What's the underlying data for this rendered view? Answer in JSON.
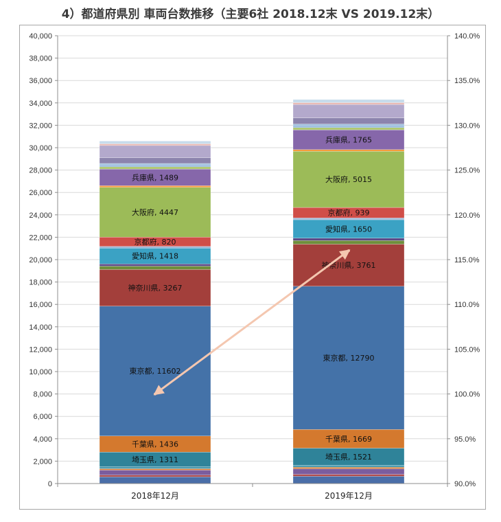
{
  "header": {
    "title": "4）都道府県別 車両台数推移（主要6社 2018.12末 VS 2019.12末）"
  },
  "chart_data": {
    "type": "bar",
    "stacked": true,
    "title": "4）都道府県別 車両台数推移（主要6社 2018.12末 VS 2019.12末）",
    "categories": [
      "2018年12月",
      "2019年12月"
    ],
    "y_left": {
      "min": 0,
      "max": 40000,
      "step": 2000
    },
    "y_right": {
      "min": 90,
      "max": 140,
      "step": 5,
      "suffix": "%"
    },
    "y_left_ticks": [
      "0",
      "2,000",
      "4,000",
      "6,000",
      "8,000",
      "10,000",
      "12,000",
      "14,000",
      "16,000",
      "18,000",
      "20,000",
      "22,000",
      "24,000",
      "26,000",
      "28,000",
      "30,000",
      "32,000",
      "34,000",
      "36,000",
      "38,000",
      "40,000"
    ],
    "y_right_ticks": [
      "90.0%",
      "95.0%",
      "100.0%",
      "105.0%",
      "110.0%",
      "115.0%",
      "120.0%",
      "125.0%",
      "130.0%",
      "135.0%",
      "140.0%"
    ],
    "series": [
      {
        "label": "",
        "values": [
          600,
          650
        ],
        "color": "#4a6ea8"
      },
      {
        "label": "",
        "values": [
          150,
          170
        ],
        "color": "#b04a48"
      },
      {
        "label": "",
        "values": [
          450,
          500
        ],
        "color": "#7b5d9e"
      },
      {
        "label": "",
        "values": [
          120,
          130
        ],
        "color": "#e07d2c"
      },
      {
        "label": "",
        "values": [
          180,
          190
        ],
        "color": "#4a9bb0"
      },
      {
        "label": "埼玉県",
        "values": [
          1311,
          1521
        ],
        "color": "#2f8399"
      },
      {
        "label": "千葉県",
        "values": [
          1436,
          1669
        ],
        "color": "#d4792e"
      },
      {
        "label": "東京都",
        "values": [
          11602,
          12790
        ],
        "color": "#4472a8"
      },
      {
        "label": "神奈川県",
        "values": [
          3267,
          3761
        ],
        "color": "#a33f3b"
      },
      {
        "label": "",
        "values": [
          300,
          320
        ],
        "color": "#6f8f3c"
      },
      {
        "label": "",
        "values": [
          200,
          210
        ],
        "color": "#5e4a86"
      },
      {
        "label": "愛知県",
        "values": [
          1418,
          1650
        ],
        "color": "#3ba2c4"
      },
      {
        "label": "",
        "values": [
          150,
          160
        ],
        "color": "#9fb8d8"
      },
      {
        "label": "京都府",
        "values": [
          820,
          939
        ],
        "color": "#d04e48"
      },
      {
        "label": "大阪府",
        "values": [
          4447,
          5015
        ],
        "color": "#9cbb58"
      },
      {
        "label": "",
        "values": [
          150,
          150
        ],
        "color": "#f59b3c"
      },
      {
        "label": "兵庫県",
        "values": [
          1489,
          1765
        ],
        "color": "#8667aa"
      },
      {
        "label": "",
        "values": [
          200,
          200
        ],
        "color": "#b0c870"
      },
      {
        "label": "",
        "values": [
          150,
          160
        ],
        "color": "#8db3da"
      },
      {
        "label": "",
        "values": [
          150,
          160
        ],
        "color": "#9fc0de"
      },
      {
        "label": "",
        "values": [
          500,
          550
        ],
        "color": "#8c84ad"
      },
      {
        "label": "",
        "values": [
          1100,
          1200
        ],
        "color": "#b3a9cc"
      },
      {
        "label": "",
        "values": [
          150,
          160
        ],
        "color": "#e8b8b2"
      },
      {
        "label": "",
        "values": [
          250,
          280
        ],
        "color": "#c7dcec"
      }
    ],
    "line": {
      "axis": "right",
      "values": [
        100.0,
        116.0
      ],
      "color": "#f4c7b0"
    }
  }
}
